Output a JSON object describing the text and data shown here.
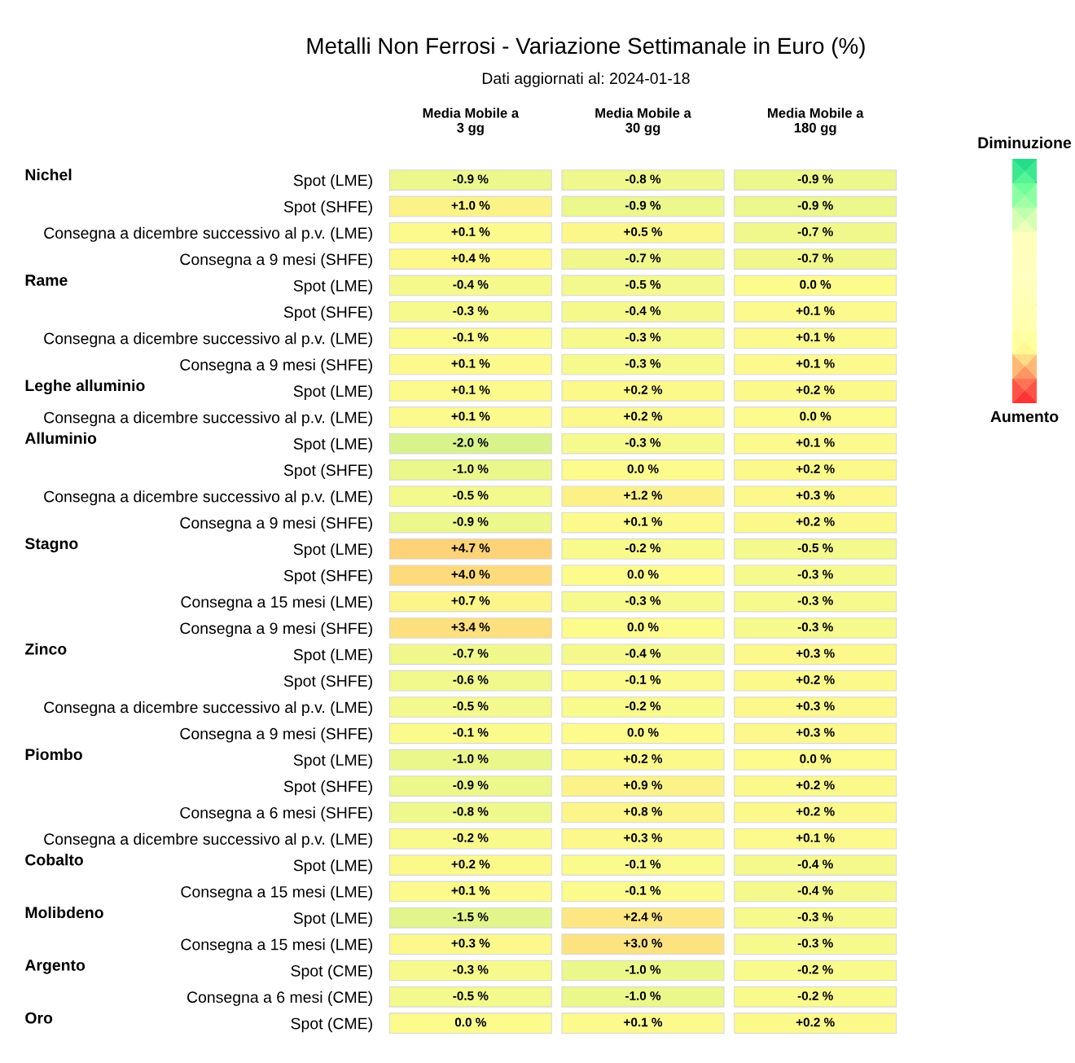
{
  "chart_data": {
    "type": "heatmap",
    "title": "Metalli Non Ferrosi - Variazione Settimanale in Euro (%)",
    "subtitle": "Dati aggiornati al: 2024-01-18",
    "categories": [
      "Media Mobile a\n3 gg",
      "Media Mobile a\n30 gg",
      "Media Mobile a\n180 gg"
    ],
    "y_categories": [
      "Spot (LME)",
      "Spot (SHFE)",
      "Consegna a dicembre successivo al p.v. (LME)",
      "Consegna a 9 mesi (SHFE)",
      "Spot (LME)",
      "Spot (SHFE)",
      "Consegna a dicembre successivo al p.v. (LME)",
      "Consegna a 9 mesi (SHFE)",
      "Spot (LME)",
      "Consegna a dicembre successivo al p.v. (LME)",
      "Spot (LME)",
      "Spot (SHFE)",
      "Consegna a dicembre successivo al p.v. (LME)",
      "Consegna a 9 mesi (SHFE)",
      "Spot (LME)",
      "Spot (SHFE)",
      "Consegna a 15 mesi (LME)",
      "Consegna a 9 mesi (SHFE)",
      "Spot (LME)",
      "Spot (SHFE)",
      "Consegna a dicembre successivo al p.v. (LME)",
      "Consegna a 9 mesi (SHFE)",
      "Spot (LME)",
      "Spot (SHFE)",
      "Consegna a 6 mesi (SHFE)",
      "Consegna a dicembre successivo al p.v. (LME)",
      "Spot (LME)",
      "Consegna a 15 mesi (LME)",
      "Spot (LME)",
      "Consegna a 15 mesi (LME)",
      "Spot (CME)",
      "Consegna a 6 mesi (CME)",
      "Spot (CME)"
    ],
    "y2_categories": [
      "Nichel",
      null,
      null,
      null,
      "Rame",
      null,
      null,
      null,
      "Leghe alluminio",
      null,
      "Alluminio",
      null,
      null,
      null,
      "Stagno",
      null,
      null,
      null,
      "Zinco",
      null,
      null,
      null,
      "Piombo",
      null,
      null,
      null,
      "Cobalto",
      null,
      "Molibdeno",
      null,
      "Argento",
      null,
      "Oro"
    ],
    "cells": [
      [
        -0.9,
        -0.8,
        -0.9
      ],
      [
        1.0,
        -0.9,
        -0.9
      ],
      [
        0.1,
        0.5,
        -0.7
      ],
      [
        0.4,
        -0.7,
        -0.7
      ],
      [
        -0.4,
        -0.5,
        0.0
      ],
      [
        -0.3,
        -0.4,
        0.1
      ],
      [
        -0.1,
        -0.3,
        0.1
      ],
      [
        0.1,
        -0.3,
        0.1
      ],
      [
        0.1,
        0.2,
        0.2
      ],
      [
        0.1,
        0.2,
        0.0
      ],
      [
        -2.0,
        -0.3,
        0.1
      ],
      [
        -1.0,
        0.0,
        0.2
      ],
      [
        -0.5,
        1.2,
        0.3
      ],
      [
        -0.9,
        0.1,
        0.2
      ],
      [
        4.7,
        -0.2,
        -0.5
      ],
      [
        4.0,
        0.0,
        -0.3
      ],
      [
        0.7,
        -0.3,
        -0.3
      ],
      [
        3.4,
        0.0,
        -0.3
      ],
      [
        -0.7,
        -0.4,
        0.3
      ],
      [
        -0.6,
        -0.1,
        0.2
      ],
      [
        -0.5,
        -0.2,
        0.3
      ],
      [
        -0.1,
        0.0,
        0.3
      ],
      [
        -1.0,
        0.2,
        0.0
      ],
      [
        -0.9,
        0.9,
        0.2
      ],
      [
        -0.8,
        0.8,
        0.2
      ],
      [
        -0.2,
        0.3,
        0.1
      ],
      [
        0.2,
        -0.1,
        -0.4
      ],
      [
        0.1,
        -0.1,
        -0.4
      ],
      [
        -1.5,
        2.4,
        -0.3
      ],
      [
        0.3,
        3.0,
        -0.3
      ],
      [
        -0.3,
        -1.0,
        -0.2
      ],
      [
        -0.5,
        -1.0,
        -0.2
      ],
      [
        0.0,
        0.1,
        0.2
      ]
    ],
    "cell_labels": [
      [
        "-0.9 %",
        "-0.8 %",
        "-0.9 %"
      ],
      [
        "+1.0 %",
        "-0.9 %",
        "-0.9 %"
      ],
      [
        "+0.1 %",
        "+0.5 %",
        "-0.7 %"
      ],
      [
        "+0.4 %",
        "-0.7 %",
        "-0.7 %"
      ],
      [
        "-0.4 %",
        "-0.5 %",
        "0.0 %"
      ],
      [
        "-0.3 %",
        "-0.4 %",
        "+0.1 %"
      ],
      [
        "-0.1 %",
        "-0.3 %",
        "+0.1 %"
      ],
      [
        "+0.1 %",
        "-0.3 %",
        "+0.1 %"
      ],
      [
        "+0.1 %",
        "+0.2 %",
        "+0.2 %"
      ],
      [
        "+0.1 %",
        "+0.2 %",
        "0.0 %"
      ],
      [
        "-2.0 %",
        "-0.3 %",
        "+0.1 %"
      ],
      [
        "-1.0 %",
        "0.0 %",
        "+0.2 %"
      ],
      [
        "-0.5 %",
        "+1.2 %",
        "+0.3 %"
      ],
      [
        "-0.9 %",
        "+0.1 %",
        "+0.2 %"
      ],
      [
        "+4.7 %",
        "-0.2 %",
        "-0.5 %"
      ],
      [
        "+4.0 %",
        "0.0 %",
        "-0.3 %"
      ],
      [
        "+0.7 %",
        "-0.3 %",
        "-0.3 %"
      ],
      [
        "+3.4 %",
        "0.0 %",
        "-0.3 %"
      ],
      [
        "-0.7 %",
        "-0.4 %",
        "+0.3 %"
      ],
      [
        "-0.6 %",
        "-0.1 %",
        "+0.2 %"
      ],
      [
        "-0.5 %",
        "-0.2 %",
        "+0.3 %"
      ],
      [
        "-0.1 %",
        "0.0 %",
        "+0.3 %"
      ],
      [
        "-1.0 %",
        "+0.2 %",
        "0.0 %"
      ],
      [
        "-0.9 %",
        "+0.9 %",
        "+0.2 %"
      ],
      [
        "-0.8 %",
        "+0.8 %",
        "+0.2 %"
      ],
      [
        "-0.2 %",
        "+0.3 %",
        "+0.1 %"
      ],
      [
        "+0.2 %",
        "-0.1 %",
        "-0.4 %"
      ],
      [
        "+0.1 %",
        "-0.1 %",
        "-0.4 %"
      ],
      [
        "-1.5 %",
        "+2.4 %",
        "-0.3 %"
      ],
      [
        "+0.3 %",
        "+3.0 %",
        "-0.3 %"
      ],
      [
        "-0.3 %",
        "-1.0 %",
        "-0.2 %"
      ],
      [
        "-0.5 %",
        "-1.0 %",
        "-0.2 %"
      ],
      [
        "0.0 %",
        "+0.1 %",
        "+0.2 %"
      ]
    ],
    "annotations": [
      "Diminuzione",
      "Aumento"
    ]
  }
}
